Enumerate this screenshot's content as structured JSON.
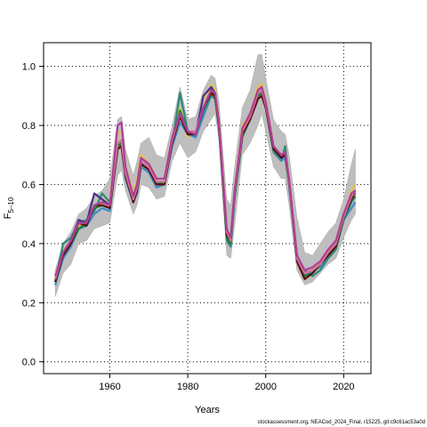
{
  "chart_data": {
    "type": "line",
    "xlabel": "Years",
    "ylabel_main": "F",
    "ylabel_sub": "5–10",
    "xlim": [
      1943,
      2027
    ],
    "ylim": [
      -0.04,
      1.08
    ],
    "x_ticks": [
      1960,
      1980,
      2000,
      2020
    ],
    "y_ticks": [
      0.0,
      0.2,
      0.4,
      0.6,
      0.8,
      1.0
    ],
    "y_tick_labels": [
      "0.0",
      "0.2",
      "0.4",
      "0.6",
      "0.8",
      "1.0"
    ],
    "grid": "dotted",
    "band_color": "#bebebe",
    "years": [
      1946,
      1948,
      1950,
      1952,
      1954,
      1956,
      1958,
      1960,
      1962,
      1963,
      1964,
      1966,
      1967,
      1968,
      1970,
      1972,
      1974,
      1976,
      1978,
      1980,
      1982,
      1984,
      1986,
      1987,
      1988,
      1990,
      1991,
      1992,
      1994,
      1996,
      1998,
      1999,
      2000,
      2002,
      2004,
      2005,
      2006,
      2008,
      2010,
      2012,
      2014,
      2016,
      2018,
      2020,
      2022,
      2023
    ],
    "band_upper": [
      0.31,
      0.4,
      0.44,
      0.5,
      0.52,
      0.56,
      0.58,
      0.62,
      0.82,
      0.83,
      0.72,
      0.63,
      0.68,
      0.74,
      0.76,
      0.7,
      0.69,
      0.8,
      0.93,
      0.82,
      0.83,
      0.92,
      0.97,
      0.96,
      0.88,
      0.55,
      0.53,
      0.66,
      0.86,
      0.92,
      1.04,
      1.04,
      0.96,
      0.82,
      0.78,
      0.77,
      0.7,
      0.49,
      0.37,
      0.36,
      0.4,
      0.44,
      0.47,
      0.55,
      0.67,
      0.72
    ],
    "band_lower": [
      0.22,
      0.3,
      0.33,
      0.4,
      0.41,
      0.45,
      0.46,
      0.47,
      0.63,
      0.65,
      0.58,
      0.5,
      0.53,
      0.6,
      0.59,
      0.55,
      0.56,
      0.68,
      0.74,
      0.69,
      0.71,
      0.78,
      0.82,
      0.84,
      0.75,
      0.36,
      0.35,
      0.46,
      0.7,
      0.74,
      0.8,
      0.84,
      0.78,
      0.66,
      0.62,
      0.62,
      0.53,
      0.31,
      0.26,
      0.27,
      0.3,
      0.33,
      0.35,
      0.42,
      0.48,
      0.5
    ],
    "series": [
      {
        "color": "#e3c24a",
        "values": [
          0.29,
          0.38,
          0.4,
          0.46,
          0.46,
          0.52,
          0.54,
          0.55,
          0.77,
          0.78,
          0.66,
          0.57,
          0.62,
          0.7,
          0.67,
          0.62,
          0.62,
          0.76,
          0.86,
          0.76,
          0.78,
          0.86,
          0.94,
          0.92,
          0.82,
          0.45,
          0.42,
          0.58,
          0.8,
          0.84,
          0.93,
          0.94,
          0.88,
          0.73,
          0.7,
          0.71,
          0.62,
          0.36,
          0.3,
          0.31,
          0.34,
          0.37,
          0.4,
          0.49,
          0.58,
          0.6
        ]
      },
      {
        "color": "#2b8a78",
        "values": [
          0.27,
          0.4,
          0.42,
          0.47,
          0.48,
          0.51,
          0.57,
          0.54,
          0.73,
          0.74,
          0.64,
          0.55,
          0.59,
          0.67,
          0.65,
          0.6,
          0.6,
          0.74,
          0.91,
          0.78,
          0.76,
          0.85,
          0.92,
          0.9,
          0.79,
          0.41,
          0.39,
          0.55,
          0.76,
          0.82,
          0.89,
          0.9,
          0.86,
          0.71,
          0.68,
          0.73,
          0.6,
          0.34,
          0.31,
          0.29,
          0.31,
          0.35,
          0.38,
          0.48,
          0.54,
          0.56
        ]
      },
      {
        "color": "#3d8cc8",
        "values": [
          0.26,
          0.35,
          0.39,
          0.45,
          0.46,
          0.5,
          0.52,
          0.51,
          0.72,
          0.73,
          0.62,
          0.54,
          0.57,
          0.66,
          0.64,
          0.59,
          0.6,
          0.73,
          0.81,
          0.77,
          0.76,
          0.83,
          0.9,
          0.89,
          0.8,
          0.43,
          0.4,
          0.56,
          0.77,
          0.82,
          0.9,
          0.91,
          0.86,
          0.72,
          0.68,
          0.69,
          0.6,
          0.35,
          0.29,
          0.31,
          0.32,
          0.36,
          0.39,
          0.48,
          0.52,
          0.54
        ]
      },
      {
        "color": "#4a2d86",
        "values": [
          0.28,
          0.37,
          0.41,
          0.48,
          0.47,
          0.57,
          0.55,
          0.53,
          0.74,
          0.75,
          0.65,
          0.56,
          0.6,
          0.68,
          0.66,
          0.61,
          0.61,
          0.75,
          0.84,
          0.77,
          0.77,
          0.9,
          0.93,
          0.91,
          0.81,
          0.44,
          0.41,
          0.57,
          0.78,
          0.83,
          0.91,
          0.92,
          0.87,
          0.73,
          0.69,
          0.7,
          0.61,
          0.36,
          0.3,
          0.31,
          0.33,
          0.37,
          0.4,
          0.5,
          0.56,
          0.57
        ]
      },
      {
        "color": "#1a7a2e",
        "values": [
          0.28,
          0.36,
          0.4,
          0.45,
          0.47,
          0.52,
          0.53,
          0.52,
          0.73,
          0.74,
          0.64,
          0.55,
          0.58,
          0.67,
          0.65,
          0.6,
          0.61,
          0.74,
          0.85,
          0.78,
          0.77,
          0.85,
          0.91,
          0.89,
          0.8,
          0.42,
          0.4,
          0.56,
          0.77,
          0.83,
          0.9,
          0.91,
          0.86,
          0.72,
          0.7,
          0.7,
          0.6,
          0.35,
          0.29,
          0.3,
          0.33,
          0.36,
          0.39,
          0.48,
          0.55,
          0.56
        ]
      },
      {
        "color": "#5a1010",
        "values": [
          0.27,
          0.36,
          0.4,
          0.47,
          0.46,
          0.53,
          0.53,
          0.52,
          0.72,
          0.73,
          0.63,
          0.54,
          0.58,
          0.67,
          0.65,
          0.6,
          0.6,
          0.74,
          0.83,
          0.77,
          0.77,
          0.86,
          0.91,
          0.9,
          0.8,
          0.43,
          0.41,
          0.57,
          0.77,
          0.82,
          0.89,
          0.9,
          0.86,
          0.72,
          0.69,
          0.7,
          0.61,
          0.34,
          0.28,
          0.3,
          0.33,
          0.36,
          0.39,
          0.49,
          0.55,
          0.58
        ]
      },
      {
        "color": "#d37a96",
        "values": [
          0.28,
          0.37,
          0.41,
          0.47,
          0.47,
          0.53,
          0.54,
          0.53,
          0.74,
          0.75,
          0.64,
          0.55,
          0.59,
          0.68,
          0.66,
          0.61,
          0.61,
          0.75,
          0.84,
          0.78,
          0.78,
          0.86,
          0.92,
          0.91,
          0.81,
          0.44,
          0.41,
          0.57,
          0.78,
          0.83,
          0.91,
          0.92,
          0.87,
          0.73,
          0.7,
          0.71,
          0.61,
          0.35,
          0.3,
          0.31,
          0.33,
          0.37,
          0.4,
          0.49,
          0.56,
          0.58
        ]
      },
      {
        "color": "#b13c9a",
        "values": [
          0.29,
          0.37,
          0.41,
          0.47,
          0.47,
          0.53,
          0.54,
          0.53,
          0.8,
          0.81,
          0.66,
          0.56,
          0.6,
          0.69,
          0.67,
          0.62,
          0.62,
          0.76,
          0.84,
          0.78,
          0.77,
          0.86,
          0.92,
          0.91,
          0.81,
          0.45,
          0.42,
          0.58,
          0.79,
          0.84,
          0.92,
          0.93,
          0.88,
          0.73,
          0.7,
          0.71,
          0.62,
          0.36,
          0.31,
          0.32,
          0.34,
          0.38,
          0.41,
          0.5,
          0.57,
          0.58
        ]
      }
    ]
  },
  "footnote": "stockassessment.org, NEACod_2024_Final, r15225, git:c9c61ac53a0d"
}
